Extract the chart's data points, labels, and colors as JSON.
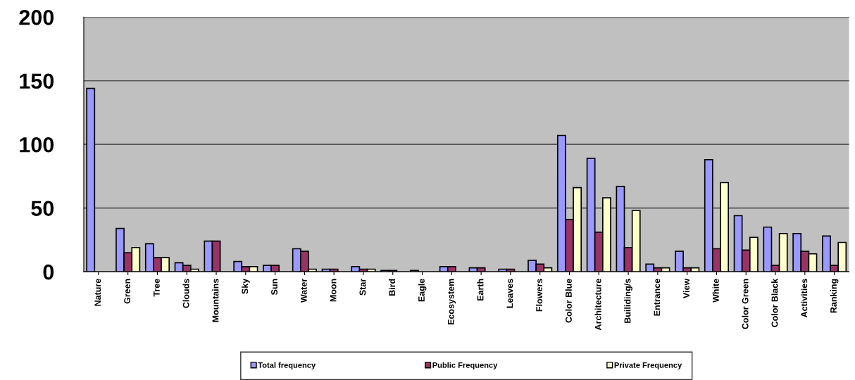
{
  "chart_data": {
    "type": "bar",
    "categories": [
      "Nature",
      "Green",
      "Tree",
      "Clouds",
      "Mountains",
      "Sky",
      "Sun",
      "Water",
      "Moon",
      "Star",
      "Bird",
      "Eagle",
      "Ecosystem",
      "Earth",
      "Leaves",
      "Flowers",
      "Color Blue",
      "Architecture",
      "Builiding/s",
      "Entrance",
      "View",
      "White",
      "Color Green",
      "Color Black",
      "Activities",
      "Ranking"
    ],
    "series": [
      {
        "name": "Total frequency",
        "color": "#9999ff",
        "values": [
          144,
          34,
          22,
          7,
          24,
          8,
          5,
          18,
          2,
          4,
          1,
          1,
          4,
          3,
          2,
          9,
          107,
          89,
          67,
          6,
          16,
          88,
          44,
          35,
          30,
          28
        ]
      },
      {
        "name": "Public Frequency",
        "color": "#993366",
        "values": [
          0,
          15,
          11,
          5,
          24,
          4,
          5,
          16,
          2,
          2,
          1,
          0,
          4,
          3,
          2,
          6,
          41,
          31,
          19,
          3,
          3,
          18,
          17,
          5,
          16,
          5
        ]
      },
      {
        "name": "Private Frequency",
        "color": "#ffffcc",
        "values": [
          0,
          19,
          11,
          2,
          0,
          4,
          0,
          2,
          0,
          2,
          0,
          0,
          0,
          0,
          0,
          3,
          66,
          58,
          48,
          3,
          3,
          70,
          27,
          30,
          14,
          23
        ]
      }
    ],
    "ylim": [
      0,
      200
    ],
    "yticks": [
      0,
      50,
      100,
      150,
      200
    ],
    "grid": "y",
    "legend": "bottom"
  }
}
